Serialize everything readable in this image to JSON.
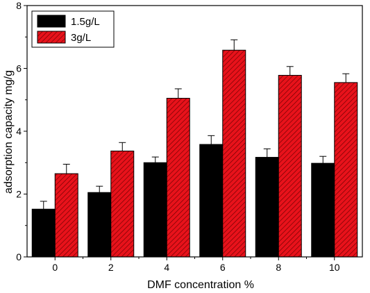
{
  "chart_data": {
    "type": "bar",
    "xlabel": "DMF concentration %",
    "ylabel": "adsorption capacity mg/g",
    "ylim": [
      0,
      8
    ],
    "yticks": [
      "0",
      "2",
      "4",
      "6",
      "8"
    ],
    "categories": [
      "0",
      "2",
      "4",
      "6",
      "8",
      "10"
    ],
    "series": [
      {
        "name": "1.5g/L",
        "color": "#000000",
        "pattern": "solid",
        "values": [
          1.52,
          2.05,
          3.0,
          3.58,
          3.17,
          2.98
        ],
        "errors": [
          0.25,
          0.2,
          0.18,
          0.28,
          0.27,
          0.22
        ]
      },
      {
        "name": "3g/L",
        "color": "#e8121b",
        "pattern": "diagonal-hatch",
        "values": [
          2.65,
          3.37,
          5.05,
          6.58,
          5.78,
          5.55
        ],
        "errors": [
          0.3,
          0.27,
          0.3,
          0.33,
          0.28,
          0.28
        ]
      }
    ],
    "legend": {
      "placement": "top-left"
    },
    "grid": false
  }
}
